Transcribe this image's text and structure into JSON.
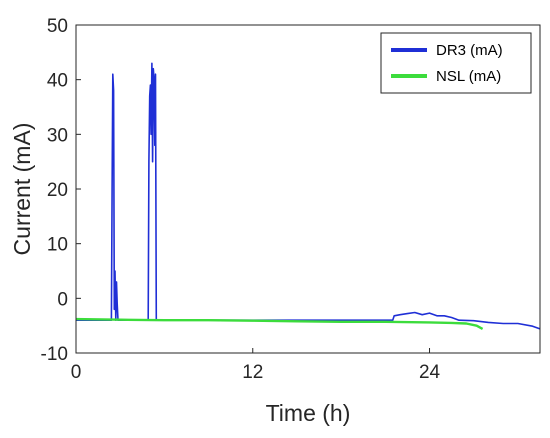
{
  "chart_data": {
    "type": "line",
    "title": "",
    "xlabel": "Time (h)",
    "ylabel": "Current (mA)",
    "xlim": [
      0,
      31.5
    ],
    "ylim": [
      -10,
      50
    ],
    "xticks": [
      0,
      12,
      24
    ],
    "yticks": [
      -10,
      0,
      10,
      20,
      30,
      40,
      50
    ],
    "grid": false,
    "legend_position": "top-right",
    "series": [
      {
        "name": "DR3 (mA)",
        "color": "#1f2fd6",
        "x": [
          0,
          2.3,
          2.4,
          2.45,
          2.5,
          2.55,
          2.6,
          2.65,
          2.7,
          2.75,
          2.8,
          2.85,
          2.95,
          3.0,
          3.5,
          4.8,
          4.9,
          4.95,
          5.0,
          5.05,
          5.1,
          5.15,
          5.2,
          5.25,
          5.3,
          5.35,
          5.4,
          5.45,
          5.5,
          5.55,
          5.6,
          5.7,
          6,
          9,
          12,
          15,
          18,
          21,
          21.5,
          21.6,
          22,
          22.5,
          23,
          23.5,
          24,
          24.5,
          25,
          25.5,
          26,
          27,
          28,
          29,
          30,
          31,
          31.5
        ],
        "y": [
          -4,
          -4,
          -4,
          20,
          41,
          38,
          -2,
          5,
          -4,
          3,
          -1,
          -4,
          -4,
          -4,
          -4,
          -4,
          -4,
          25,
          37,
          39,
          30,
          43,
          25,
          42,
          40,
          28,
          41,
          -4,
          -4,
          -4,
          -4,
          -4,
          -4,
          -4,
          -4,
          -4,
          -4,
          -4,
          -4,
          -3.2,
          -3,
          -2.8,
          -2.6,
          -3.0,
          -2.7,
          -3.2,
          -3.2,
          -3.5,
          -4,
          -4.1,
          -4.4,
          -4.6,
          -4.6,
          -5.1,
          -5.6
        ]
      },
      {
        "name": "NSL (mA)",
        "color": "#3cdc3c",
        "x": [
          0,
          3,
          6,
          9,
          12,
          15,
          18,
          21,
          24,
          25.5,
          26.5,
          27.2,
          27.6
        ],
        "y": [
          -3.8,
          -3.9,
          -4.0,
          -4.0,
          -4.1,
          -4.2,
          -4.3,
          -4.3,
          -4.4,
          -4.5,
          -4.6,
          -5.0,
          -5.6
        ]
      }
    ]
  }
}
